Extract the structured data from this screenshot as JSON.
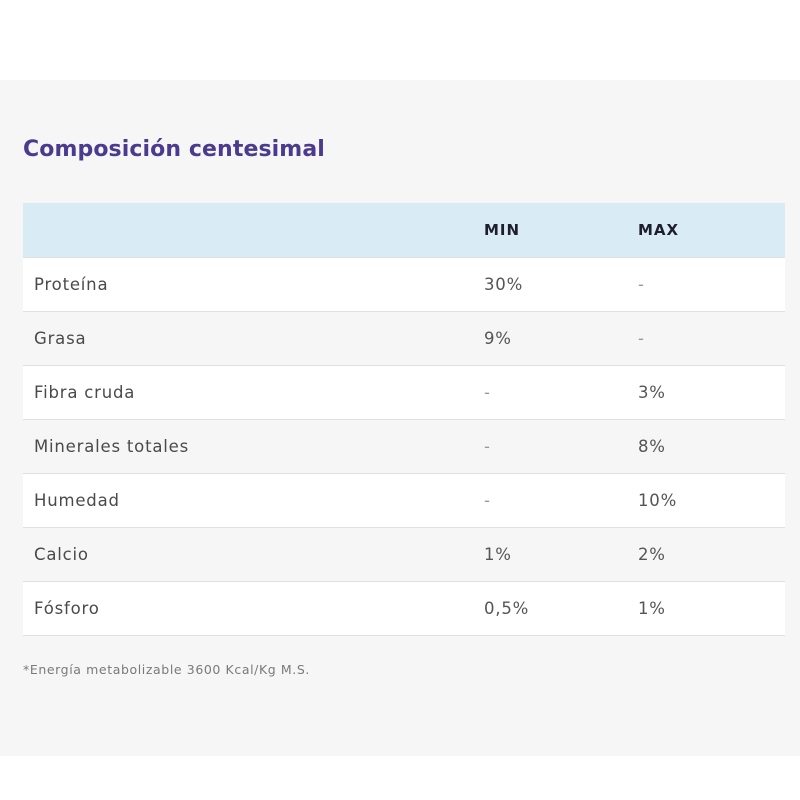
{
  "section": {
    "title": "Composición centesimal",
    "colors": {
      "title": "#4b3a8e",
      "header_bg": "#d9ecf5",
      "section_bg": "#f6f6f6"
    }
  },
  "table": {
    "headers": [
      "",
      "MIN",
      "MAX"
    ],
    "rows": [
      {
        "name": "Proteína",
        "min": "30%",
        "max": "-"
      },
      {
        "name": "Grasa",
        "min": "9%",
        "max": "-"
      },
      {
        "name": "Fibra cruda",
        "min": "-",
        "max": "3%"
      },
      {
        "name": "Minerales totales",
        "min": "-",
        "max": "8%"
      },
      {
        "name": "Humedad",
        "min": "-",
        "max": "10%"
      },
      {
        "name": "Calcio",
        "min": "1%",
        "max": "2%"
      },
      {
        "name": "Fósforo",
        "min": "0,5%",
        "max": "1%"
      }
    ]
  },
  "footnote": "*Energía metabolizable 3600 Kcal/Kg M.S."
}
